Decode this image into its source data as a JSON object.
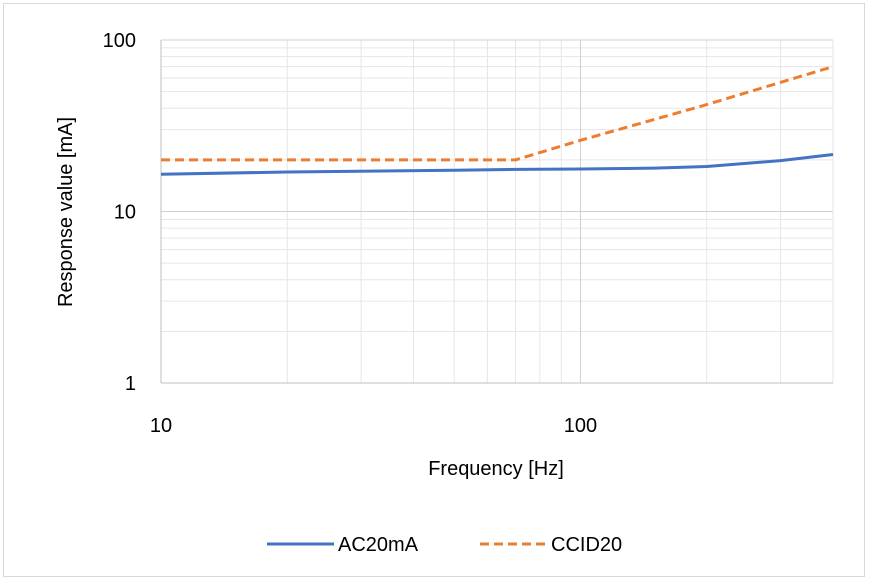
{
  "chart_data": {
    "type": "line",
    "x_scale": "log",
    "y_scale": "log",
    "xlabel": "Frequency [Hz]",
    "ylabel": "Response value [mA]",
    "xlim": [
      10,
      400
    ],
    "ylim": [
      1,
      100
    ],
    "x_ticks": [
      "10",
      "100"
    ],
    "y_ticks": [
      "1",
      "10",
      "100"
    ],
    "grid": true,
    "legend_position": "bottom",
    "series": [
      {
        "name": "AC20mA",
        "color": "#4472c4",
        "style": "solid",
        "x": [
          10,
          20,
          50,
          70,
          100,
          150,
          200,
          300,
          400
        ],
        "y": [
          16.5,
          17.0,
          17.4,
          17.6,
          17.7,
          17.9,
          18.3,
          19.8,
          21.5
        ]
      },
      {
        "name": "CCID20",
        "color": "#ed7d31",
        "style": "dashed",
        "x": [
          10,
          20,
          50,
          70,
          100,
          200,
          400
        ],
        "y": [
          20,
          20,
          20,
          20,
          26,
          42,
          70
        ]
      }
    ]
  }
}
